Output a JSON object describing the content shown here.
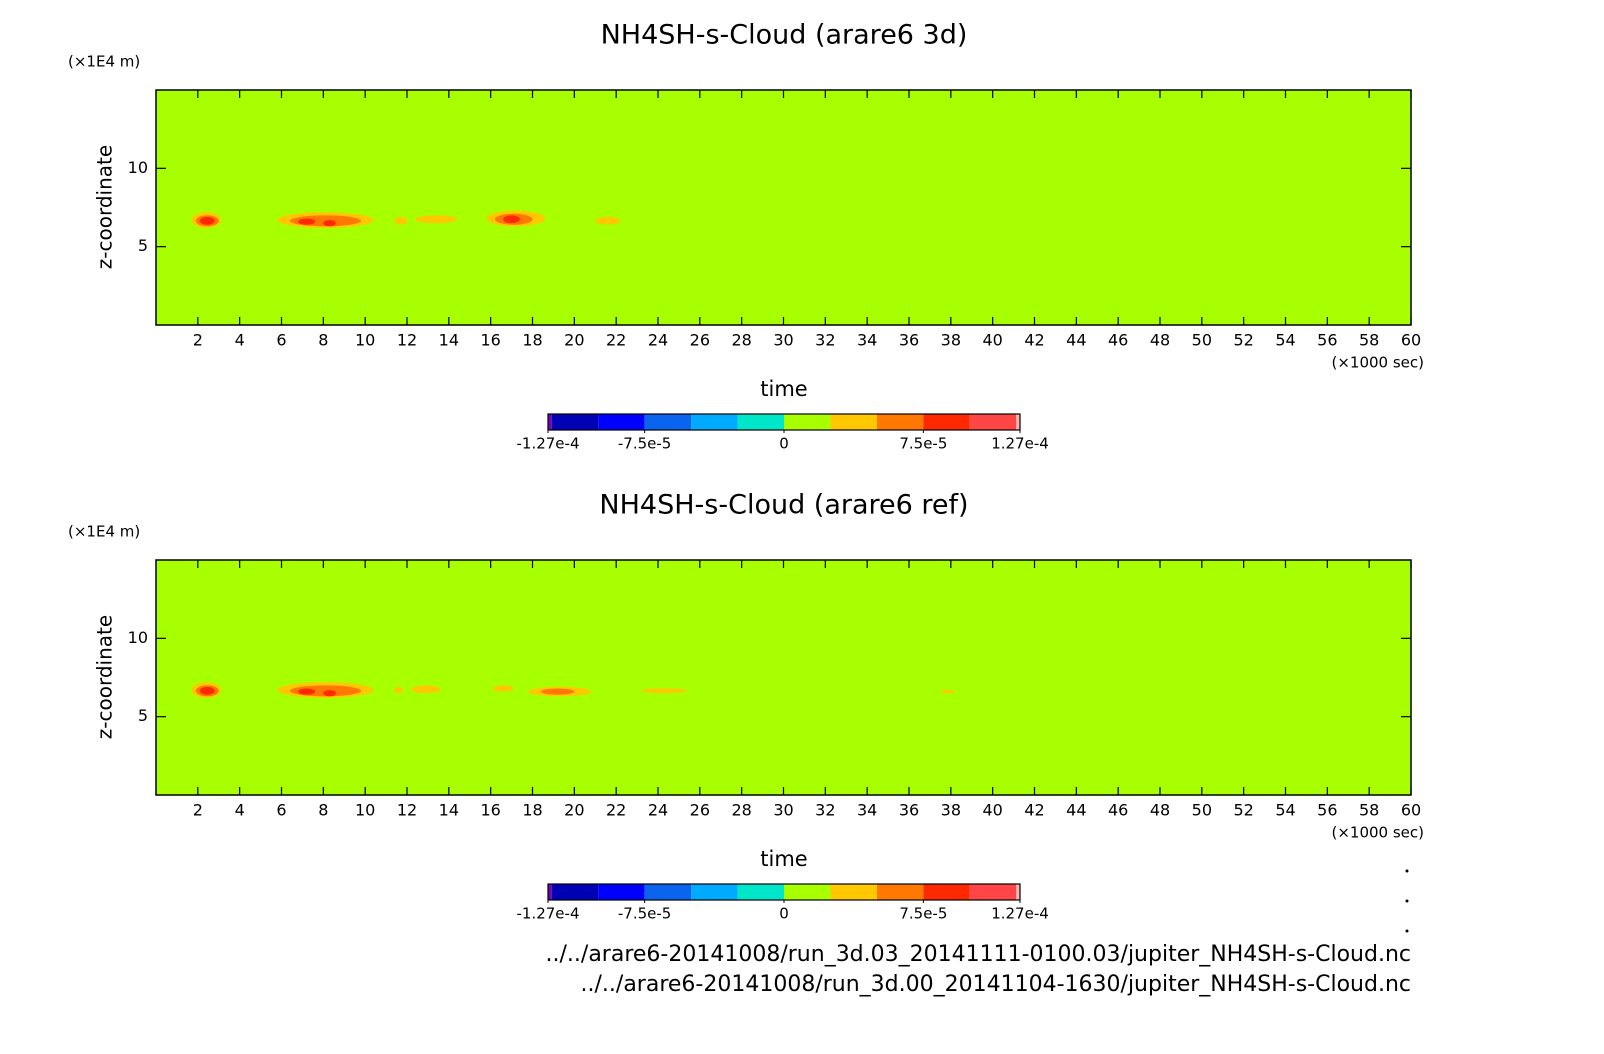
{
  "chart_data": [
    {
      "type": "contour",
      "title": "NH4SH-s-Cloud (arare6 3d)",
      "x_label": "time",
      "x_unit": "(×1000 sec)",
      "y_label": "z-coordinate",
      "y_unit": "(×1E4 m)",
      "xlim": [
        0,
        60
      ],
      "xticks": [
        2,
        4,
        6,
        8,
        10,
        12,
        14,
        16,
        18,
        20,
        22,
        24,
        26,
        28,
        30,
        32,
        34,
        36,
        38,
        40,
        42,
        44,
        46,
        48,
        50,
        52,
        54,
        56,
        58,
        60
      ],
      "ylim": [
        0,
        15
      ],
      "yticks": [
        5,
        10
      ],
      "background_color": "#a8ff00",
      "patches": [
        {
          "x": [
            1.7,
            3.1
          ],
          "y": [
            6.2,
            7.2
          ],
          "value": 2.5e-05
        },
        {
          "x": [
            1.9,
            3.0
          ],
          "y": [
            6.3,
            7.0
          ],
          "value": 5e-05
        },
        {
          "x": [
            2.1,
            2.8
          ],
          "y": [
            6.4,
            6.9
          ],
          "value": 7.5e-05
        },
        {
          "x": [
            5.8,
            10.4
          ],
          "y": [
            6.2,
            7.2
          ],
          "value": 2.5e-05
        },
        {
          "x": [
            6.4,
            9.8
          ],
          "y": [
            6.3,
            7.0
          ],
          "value": 5e-05
        },
        {
          "x": [
            6.8,
            7.6
          ],
          "y": [
            6.4,
            6.8
          ],
          "value": 7.5e-05
        },
        {
          "x": [
            8.0,
            8.6
          ],
          "y": [
            6.3,
            6.7
          ],
          "value": 7.5e-05
        },
        {
          "x": [
            11.4,
            12.0
          ],
          "y": [
            6.4,
            6.9
          ],
          "value": 2.5e-05
        },
        {
          "x": [
            12.4,
            14.4
          ],
          "y": [
            6.5,
            7.0
          ],
          "value": 2.5e-05
        },
        {
          "x": [
            15.8,
            18.6
          ],
          "y": [
            6.3,
            7.3
          ],
          "value": 2.5e-05
        },
        {
          "x": [
            16.2,
            18.0
          ],
          "y": [
            6.4,
            7.1
          ],
          "value": 5e-05
        },
        {
          "x": [
            16.6,
            17.4
          ],
          "y": [
            6.5,
            7.0
          ],
          "value": 7.5e-05
        },
        {
          "x": [
            21.0,
            22.2
          ],
          "y": [
            6.4,
            6.9
          ],
          "value": 2.5e-05
        }
      ],
      "colorbar": {
        "levels": [
          -0.000127,
          -0.000125,
          -0.0001,
          -7.5e-05,
          -5e-05,
          -2.5e-05,
          0,
          2.5e-05,
          5e-05,
          7.5e-05,
          0.0001,
          0.000125,
          0.000127
        ],
        "colors": [
          "#7800b4",
          "#0000b4",
          "#0000ff",
          "#0a64f0",
          "#00aaff",
          "#00e6c8",
          "#a8ff00",
          "#ffc800",
          "#ff7800",
          "#ff2800",
          "#ff4646",
          "#ffb4b4"
        ],
        "ticks": [
          {
            "value": -0.000127,
            "label": "-1.27e-4"
          },
          {
            "value": -7.5e-05,
            "label": "-7.5e-5"
          },
          0,
          {
            "value": 7.5e-05,
            "label": "7.5e-5"
          },
          {
            "value": 0.000127,
            "label": "1.27e-4"
          }
        ]
      }
    },
    {
      "type": "contour",
      "title": "NH4SH-s-Cloud (arare6 ref)",
      "x_label": "time",
      "x_unit": "(×1000 sec)",
      "y_label": "z-coordinate",
      "y_unit": "(×1E4 m)",
      "xlim": [
        0,
        60
      ],
      "xticks": [
        2,
        4,
        6,
        8,
        10,
        12,
        14,
        16,
        18,
        20,
        22,
        24,
        26,
        28,
        30,
        32,
        34,
        36,
        38,
        40,
        42,
        44,
        46,
        48,
        50,
        52,
        54,
        56,
        58,
        60
      ],
      "ylim": [
        0,
        15
      ],
      "yticks": [
        5,
        10
      ],
      "background_color": "#a8ff00",
      "patches": [
        {
          "x": [
            1.7,
            3.1
          ],
          "y": [
            6.2,
            7.2
          ],
          "value": 2.5e-05
        },
        {
          "x": [
            1.9,
            3.0
          ],
          "y": [
            6.3,
            7.0
          ],
          "value": 5e-05
        },
        {
          "x": [
            2.1,
            2.8
          ],
          "y": [
            6.4,
            6.9
          ],
          "value": 7.5e-05
        },
        {
          "x": [
            5.8,
            10.4
          ],
          "y": [
            6.2,
            7.2
          ],
          "value": 2.5e-05
        },
        {
          "x": [
            6.4,
            9.8
          ],
          "y": [
            6.3,
            7.0
          ],
          "value": 5e-05
        },
        {
          "x": [
            6.8,
            7.6
          ],
          "y": [
            6.4,
            6.8
          ],
          "value": 7.5e-05
        },
        {
          "x": [
            8.0,
            8.6
          ],
          "y": [
            6.3,
            6.7
          ],
          "value": 7.5e-05
        },
        {
          "x": [
            11.4,
            11.8
          ],
          "y": [
            6.5,
            6.9
          ],
          "value": 2.5e-05
        },
        {
          "x": [
            12.2,
            13.6
          ],
          "y": [
            6.5,
            7.0
          ],
          "value": 2.5e-05
        },
        {
          "x": [
            16.1,
            17.1
          ],
          "y": [
            6.6,
            7.0
          ],
          "value": 2.5e-05
        },
        {
          "x": [
            17.8,
            20.8
          ],
          "y": [
            6.3,
            6.9
          ],
          "value": 2.5e-05
        },
        {
          "x": [
            18.4,
            20.0
          ],
          "y": [
            6.4,
            6.8
          ],
          "value": 5e-05
        },
        {
          "x": [
            23.2,
            25.4
          ],
          "y": [
            6.5,
            6.8
          ],
          "value": 2.5e-05
        },
        {
          "x": [
            37.5,
            38.2
          ],
          "y": [
            6.5,
            6.7
          ],
          "value": 2.5e-05
        }
      ],
      "colorbar": {
        "levels": [
          -0.000127,
          -0.000125,
          -0.0001,
          -7.5e-05,
          -5e-05,
          -2.5e-05,
          0,
          2.5e-05,
          5e-05,
          7.5e-05,
          0.0001,
          0.000125,
          0.000127
        ],
        "colors": [
          "#7800b4",
          "#0000b4",
          "#0000ff",
          "#0a64f0",
          "#00aaff",
          "#00e6c8",
          "#a8ff00",
          "#ffc800",
          "#ff7800",
          "#ff2800",
          "#ff4646",
          "#ffb4b4"
        ],
        "ticks": [
          {
            "value": -0.000127,
            "label": "-1.27e-4"
          },
          {
            "value": -7.5e-05,
            "label": "-7.5e-5"
          },
          0,
          {
            "value": 7.5e-05,
            "label": "7.5e-5"
          },
          {
            "value": 0.000127,
            "label": "1.27e-4"
          }
        ]
      }
    }
  ],
  "footer": [
    "../../arare6-20141008/run_3d.03_20141111-0100.03/jupiter_NH4SH-s-Cloud.nc",
    "../../arare6-20141008/run_3d.00_20141104-1630/jupiter_NH4SH-s-Cloud.nc"
  ]
}
